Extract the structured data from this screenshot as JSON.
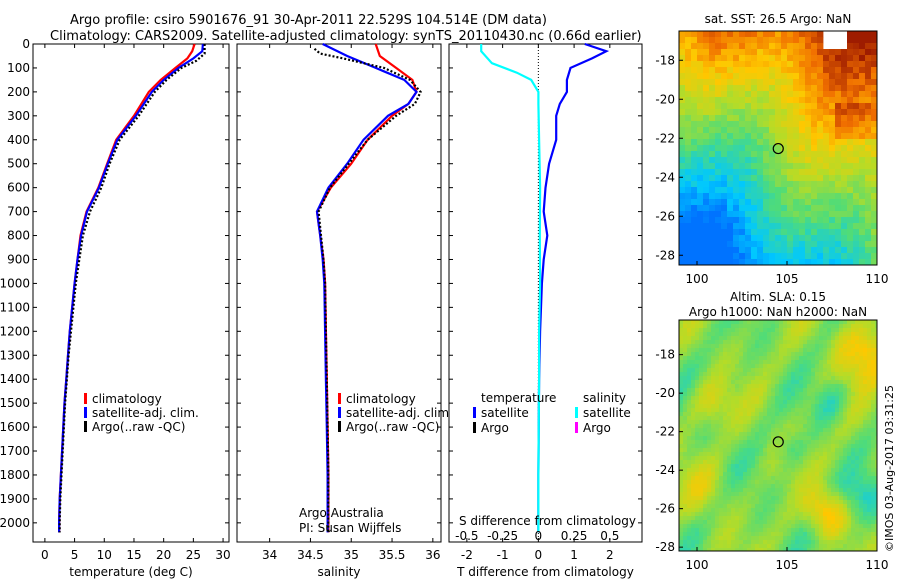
{
  "header": {
    "title_line1": "Argo profile: csiro 5901676_91 30-Apr-2011 22.529S 104.514E (DM data)",
    "title_line2": "Climatology: CARS2009. Satellite-adjusted climatology: synTS_20110430.nc (0.66d earlier)"
  },
  "stamp": "©IMOS 03-Aug-2017 03:31:25",
  "colors": {
    "climatology": "#ff0000",
    "satellite": "#0000ff",
    "argo": "#000000",
    "salinity_satellite": "#00ffff",
    "salinity_argo": "#ff00ff"
  },
  "chart_data": [
    {
      "type": "line",
      "id": "temperature",
      "xlabel": "temperature (deg C)",
      "xlim": [
        -2,
        31
      ],
      "ylim": [
        2080,
        0
      ],
      "xticks": [
        0,
        5,
        10,
        15,
        20,
        25,
        30
      ],
      "xtick_labels": [
        "0",
        "5",
        "10",
        "15",
        "20",
        "25",
        "30"
      ],
      "yticks": [
        0,
        100,
        200,
        300,
        400,
        500,
        600,
        700,
        800,
        900,
        1000,
        1100,
        1200,
        1300,
        1400,
        1500,
        1600,
        1700,
        1800,
        1900,
        2000
      ],
      "ytick_labels": [
        "0",
        "100",
        "200",
        "300",
        "400",
        "500",
        "600",
        "700",
        "800",
        "900",
        "1000",
        "1100",
        "1200",
        "1300",
        "1400",
        "1500",
        "1600",
        "1700",
        "1800",
        "1900",
        "2000"
      ],
      "legend": [
        "climatology",
        "satellite-adj. clim.",
        "Argo(..raw -QC)"
      ],
      "series": [
        {
          "name": "climatology",
          "color": "#ff0000",
          "points": [
            [
              25.2,
              0
            ],
            [
              24.8,
              30
            ],
            [
              24,
              60
            ],
            [
              22,
              100
            ],
            [
              19.5,
              150
            ],
            [
              17.5,
              200
            ],
            [
              15,
              300
            ],
            [
              12,
              400
            ],
            [
              10.5,
              500
            ],
            [
              9,
              600
            ],
            [
              7,
              700
            ],
            [
              6,
              800
            ],
            [
              5.5,
              900
            ],
            [
              5,
              1000
            ],
            [
              4.6,
              1100
            ],
            [
              4.2,
              1200
            ],
            [
              3.9,
              1300
            ],
            [
              3.6,
              1400
            ],
            [
              3.3,
              1500
            ],
            [
              3.1,
              1600
            ],
            [
              2.9,
              1700
            ],
            [
              2.7,
              1800
            ],
            [
              2.5,
              1900
            ],
            [
              2.4,
              2000
            ],
            [
              2.4,
              2040
            ]
          ]
        },
        {
          "name": "satellite-adj. clim.",
          "color": "#0000ff",
          "points": [
            [
              26.6,
              0
            ],
            [
              26.5,
              30
            ],
            [
              25,
              60
            ],
            [
              22.5,
              100
            ],
            [
              20,
              150
            ],
            [
              18,
              200
            ],
            [
              15.3,
              300
            ],
            [
              12.2,
              400
            ],
            [
              10.6,
              500
            ],
            [
              9.1,
              600
            ],
            [
              7.1,
              700
            ],
            [
              6.1,
              800
            ],
            [
              5.5,
              900
            ],
            [
              5,
              1000
            ],
            [
              4.6,
              1100
            ],
            [
              4.2,
              1200
            ],
            [
              3.9,
              1300
            ],
            [
              3.6,
              1400
            ],
            [
              3.3,
              1500
            ],
            [
              3.1,
              1600
            ],
            [
              2.9,
              1700
            ],
            [
              2.7,
              1800
            ],
            [
              2.5,
              1900
            ],
            [
              2.4,
              2000
            ],
            [
              2.4,
              2040
            ]
          ]
        },
        {
          "name": "Argo(..raw -QC)",
          "color": "#000000",
          "dashed": true,
          "points": [
            [
              26.9,
              0
            ],
            [
              26.9,
              40
            ],
            [
              25.5,
              70
            ],
            [
              23,
              100
            ],
            [
              20.5,
              150
            ],
            [
              18.5,
              200
            ],
            [
              15.8,
              300
            ],
            [
              12.6,
              400
            ],
            [
              10.9,
              500
            ],
            [
              9.5,
              600
            ],
            [
              7.6,
              700
            ],
            [
              6.4,
              800
            ],
            [
              5.8,
              900
            ],
            [
              5.2,
              1000
            ],
            [
              4.8,
              1100
            ],
            [
              4.4,
              1200
            ],
            [
              4,
              1300
            ],
            [
              3.7,
              1400
            ],
            [
              3.4,
              1500
            ],
            [
              3.2,
              1600
            ],
            [
              3,
              1700
            ],
            [
              2.8,
              1800
            ],
            [
              2.6,
              1900
            ],
            [
              2.5,
              2000
            ],
            [
              2.5,
              2040
            ]
          ]
        }
      ]
    },
    {
      "type": "line",
      "id": "salinity",
      "xlabel": "salinity",
      "xlim": [
        33.6,
        36.1
      ],
      "ylim": [
        2080,
        0
      ],
      "xticks": [
        34,
        34.5,
        35,
        35.5,
        36
      ],
      "xtick_labels": [
        "34",
        "34.5",
        "35",
        "35.5",
        "36"
      ],
      "legend": [
        "climatology",
        "satellite-adj. clim.",
        "Argo(..raw -QC)"
      ],
      "annotation": [
        "Argo Australia",
        "PI: Susan Wijffels"
      ],
      "series": [
        {
          "name": "climatology",
          "color": "#ff0000",
          "points": [
            [
              35.3,
              0
            ],
            [
              35.35,
              50
            ],
            [
              35.55,
              100
            ],
            [
              35.75,
              150
            ],
            [
              35.8,
              200
            ],
            [
              35.7,
              250
            ],
            [
              35.5,
              300
            ],
            [
              35.2,
              400
            ],
            [
              35,
              500
            ],
            [
              34.75,
              600
            ],
            [
              34.58,
              700
            ],
            [
              34.62,
              800
            ],
            [
              34.66,
              900
            ],
            [
              34.68,
              1000
            ],
            [
              34.69,
              1200
            ],
            [
              34.7,
              1400
            ],
            [
              34.71,
              1600
            ],
            [
              34.72,
              1800
            ],
            [
              34.72,
              2000
            ],
            [
              34.72,
              2040
            ]
          ]
        },
        {
          "name": "satellite-adj. clim.",
          "color": "#0000ff",
          "points": [
            [
              34.65,
              0
            ],
            [
              34.95,
              50
            ],
            [
              35.3,
              100
            ],
            [
              35.65,
              150
            ],
            [
              35.8,
              200
            ],
            [
              35.7,
              250
            ],
            [
              35.45,
              300
            ],
            [
              35.15,
              400
            ],
            [
              34.95,
              500
            ],
            [
              34.72,
              600
            ],
            [
              34.58,
              700
            ],
            [
              34.62,
              800
            ],
            [
              34.65,
              900
            ],
            [
              34.67,
              1000
            ],
            [
              34.68,
              1200
            ],
            [
              34.69,
              1400
            ],
            [
              34.7,
              1600
            ],
            [
              34.71,
              1800
            ],
            [
              34.71,
              2000
            ],
            [
              34.71,
              2040
            ]
          ]
        },
        {
          "name": "Argo(..raw -QC)",
          "color": "#000000",
          "dashed": true,
          "points": [
            [
              34.55,
              20
            ],
            [
              34.62,
              40
            ],
            [
              34.9,
              60
            ],
            [
              35.4,
              100
            ],
            [
              35.72,
              150
            ],
            [
              35.85,
              200
            ],
            [
              35.78,
              250
            ],
            [
              35.55,
              300
            ],
            [
              35.2,
              400
            ],
            [
              34.97,
              500
            ],
            [
              34.74,
              600
            ],
            [
              34.6,
              700
            ],
            [
              34.63,
              800
            ],
            [
              34.66,
              900
            ],
            [
              34.68,
              1000
            ],
            [
              34.69,
              1200
            ],
            [
              34.7,
              1400
            ],
            [
              34.71,
              1600
            ],
            [
              34.72,
              1800
            ],
            [
              34.72,
              2000
            ],
            [
              34.72,
              2040
            ]
          ]
        }
      ]
    },
    {
      "type": "line",
      "id": "difference",
      "xlabel": "T difference from climatology",
      "xlim": [
        -2.5,
        2.9
      ],
      "ylim": [
        2080,
        0
      ],
      "xticks": [
        -2,
        -1,
        0,
        1,
        2
      ],
      "xtick_labels": [
        "-2",
        "-1",
        "0",
        "1",
        "2"
      ],
      "top_label": "S difference from climatology",
      "top_ticks": [
        "-0.5",
        "-0.25",
        "0",
        "0.25",
        "0.5"
      ],
      "top_tick_values": [
        -2,
        -1,
        0,
        1,
        2
      ],
      "legend_temperature": {
        "title": "temperature",
        "items": [
          "satellite",
          "Argo"
        ]
      },
      "legend_salinity": {
        "title": "salinity",
        "items": [
          "satellite",
          "Argo"
        ]
      },
      "series": [
        {
          "name": "temperature satellite",
          "color": "#0000ff",
          "points": [
            [
              1.3,
              0
            ],
            [
              1.9,
              30
            ],
            [
              1.5,
              60
            ],
            [
              0.9,
              100
            ],
            [
              0.8,
              150
            ],
            [
              0.8,
              200
            ],
            [
              0.6,
              250
            ],
            [
              0.5,
              300
            ],
            [
              0.5,
              400
            ],
            [
              0.3,
              500
            ],
            [
              0.2,
              600
            ],
            [
              0.15,
              700
            ],
            [
              0.25,
              800
            ],
            [
              0.15,
              900
            ],
            [
              0.1,
              1000
            ],
            [
              0.05,
              1200
            ],
            [
              0.02,
              1400
            ],
            [
              0.01,
              1600
            ],
            [
              0,
              1800
            ],
            [
              0,
              2000
            ],
            [
              0,
              2040
            ]
          ]
        },
        {
          "name": "salinity satellite",
          "color": "#00ffff",
          "points": [
            [
              -1.6,
              0
            ],
            [
              -1.6,
              30
            ],
            [
              -1.3,
              80
            ],
            [
              -0.6,
              120
            ],
            [
              -0.2,
              150
            ],
            [
              0,
              200
            ],
            [
              0,
              250
            ],
            [
              0.02,
              400
            ],
            [
              0.05,
              600
            ],
            [
              0.04,
              800
            ],
            [
              0.05,
              1000
            ],
            [
              0.02,
              1200
            ],
            [
              0.02,
              1400
            ],
            [
              0.01,
              1600
            ],
            [
              0,
              1800
            ],
            [
              0,
              2000
            ],
            [
              0,
              2040
            ]
          ]
        }
      ]
    },
    {
      "type": "heatmap",
      "id": "sst_map",
      "title": "sat. SST: 26.5 Argo: NaN",
      "xlim": [
        99,
        110
      ],
      "ylim": [
        -28.5,
        -16.5
      ],
      "xticks": [
        100,
        105,
        110
      ],
      "xtick_labels": [
        "100",
        "105",
        "110"
      ],
      "yticks": [
        -18,
        -20,
        -22,
        -24,
        -26,
        -28
      ],
      "ytick_labels": [
        "-18",
        "-20",
        "-22",
        "-24",
        "-26",
        "-28"
      ],
      "marker": {
        "lon": 104.514,
        "lat": -22.529
      }
    },
    {
      "type": "heatmap",
      "id": "sla_map",
      "title_line1": "Altim. SLA: 0.15",
      "title_line2": "Argo h1000: NaN h2000: NaN",
      "xlim": [
        99,
        110
      ],
      "ylim": [
        -28.2,
        -16.2
      ],
      "xticks": [
        100,
        105,
        110
      ],
      "xtick_labels": [
        "100",
        "105",
        "110"
      ],
      "yticks": [
        -18,
        -20,
        -22,
        -24,
        -26,
        -28
      ],
      "ytick_labels": [
        "-18",
        "-20",
        "-22",
        "-24",
        "-26",
        "-28"
      ],
      "marker": {
        "lon": 104.514,
        "lat": -22.529
      }
    }
  ]
}
